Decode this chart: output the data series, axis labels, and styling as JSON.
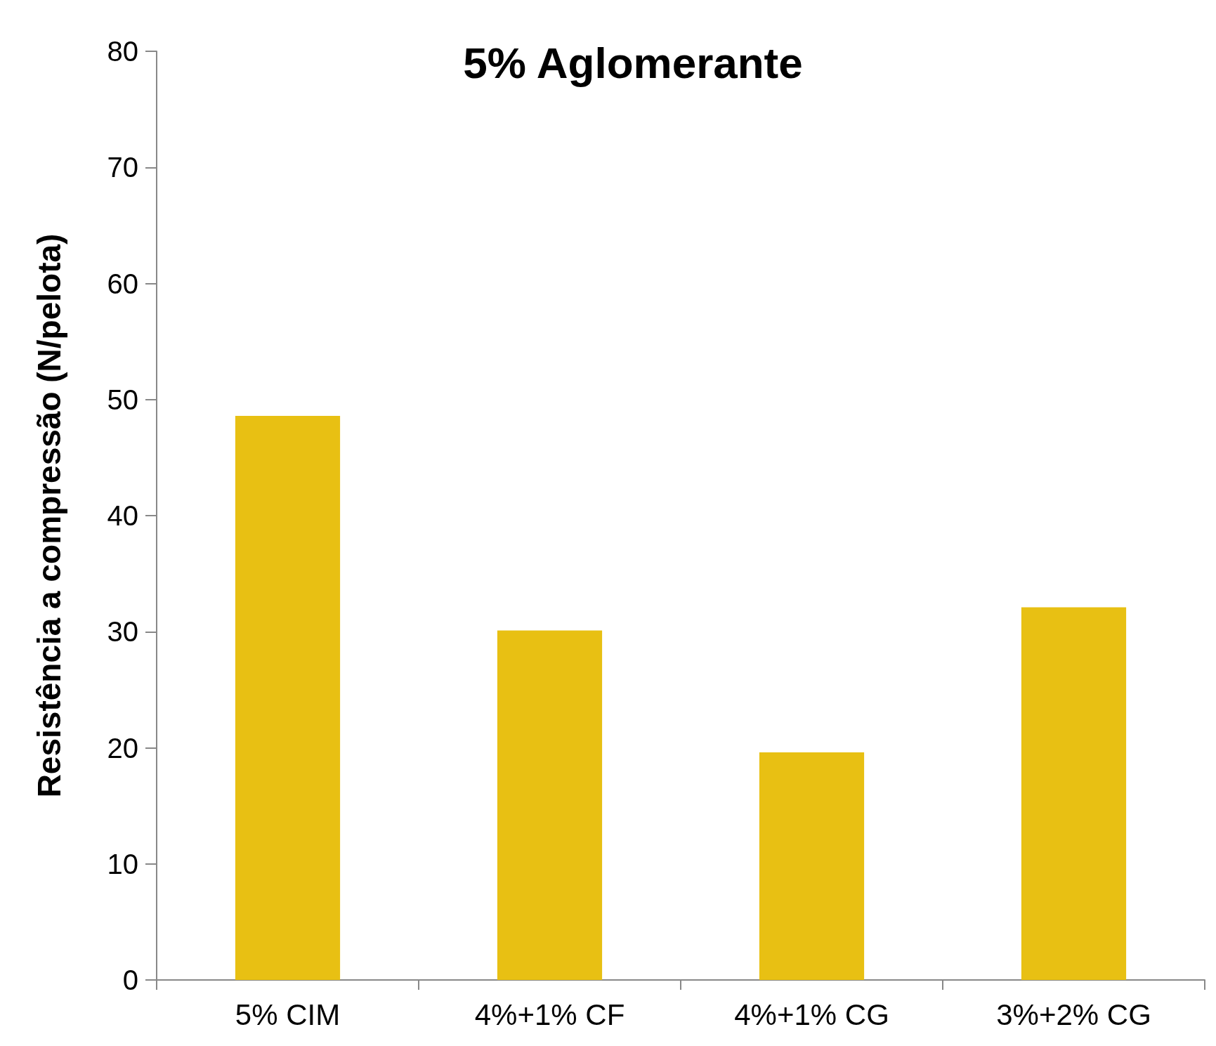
{
  "chart_data": {
    "type": "bar",
    "title": "5% Aglomerante",
    "ylabel": "Resistência a compressão (N/pelota)",
    "categories": [
      "5% CIM",
      "4%+1% CF",
      "4%+1% CG",
      "3%+2% CG"
    ],
    "values": [
      48.6,
      30.1,
      19.6,
      32.1
    ],
    "color": "#e8c013",
    "ylim": [
      0,
      80
    ],
    "yticks": [
      0,
      10,
      20,
      30,
      40,
      50,
      60,
      70,
      80
    ],
    "grid": false
  }
}
